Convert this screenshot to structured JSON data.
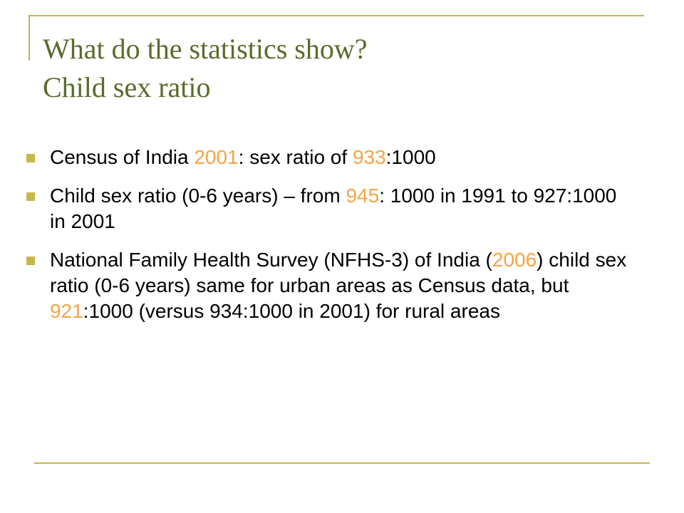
{
  "slide": {
    "title_line1": "What do the statistics show?",
    "title_line2": "Child sex ratio"
  },
  "bullets": [
    [
      {
        "text": "Census of India ",
        "highlight": false
      },
      {
        "text": "2001",
        "highlight": true
      },
      {
        "text": ": sex ratio of ",
        "highlight": false
      },
      {
        "text": "933",
        "highlight": true
      },
      {
        "text": ":1000",
        "highlight": false
      }
    ],
    [
      {
        "text": "Child sex ratio (0-6 years) – from ",
        "highlight": false
      },
      {
        "text": "945",
        "highlight": true
      },
      {
        "text": ": 1000 in 1991 to 927:1000 in 2001",
        "highlight": false
      }
    ],
    [
      {
        "text": "National Family Health Survey (NFHS-3) of India (",
        "highlight": false
      },
      {
        "text": "2006",
        "highlight": true
      },
      {
        "text": ") child sex ratio (0-6 years) same for urban areas as Census data, but ",
        "highlight": false
      },
      {
        "text": "921",
        "highlight": true
      },
      {
        "text": ":1000 (versus 934:1000 in 2001) for rural areas",
        "highlight": false
      }
    ]
  ],
  "colors": {
    "title": "#5a6b2c",
    "highlight": "#f5a443",
    "rule": "#c9b64a",
    "bullet_marker": "#c9b64a"
  }
}
